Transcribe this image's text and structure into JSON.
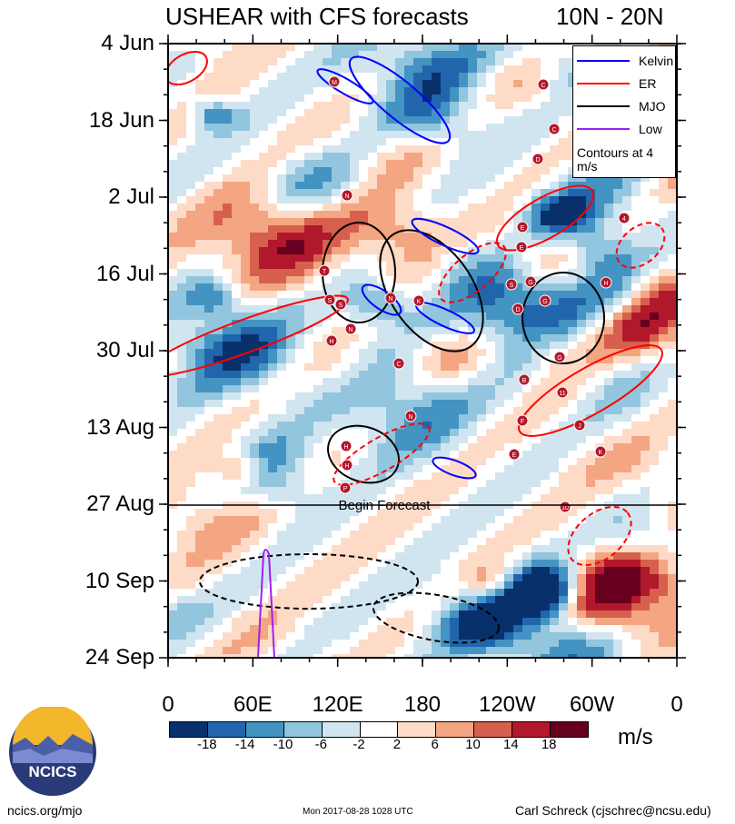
{
  "title": {
    "left": "USHEAR with CFS forecasts",
    "right": "10N - 20N"
  },
  "chart_data": {
    "type": "heatmap",
    "title": "USHEAR with CFS forecasts",
    "subtitle": "10N - 20N",
    "y_ticks": [
      "4 Jun",
      "18 Jun",
      "2 Jul",
      "16 Jul",
      "30 Jul",
      "13 Aug",
      "27 Aug",
      "10 Sep",
      "24 Sep"
    ],
    "x_ticks": [
      "0",
      "60E",
      "120E",
      "180",
      "120W",
      "60W",
      "0"
    ],
    "colorbar": {
      "ticks": [
        "-18",
        "-14",
        "-10",
        "-6",
        "-2",
        "2",
        "6",
        "10",
        "14",
        "18"
      ],
      "colors": [
        "#08306b",
        "#2166ac",
        "#4393c3",
        "#92c5de",
        "#d1e5f0",
        "#ffffff",
        "#fddbc7",
        "#f4a582",
        "#d6604d",
        "#b2182b",
        "#67001f"
      ],
      "unit": "m/s"
    },
    "legend": [
      {
        "name": "Kelvin",
        "color": "#0000ff"
      },
      {
        "name": "ER",
        "color": "#ff0000"
      },
      {
        "name": "MJO",
        "color": "#000000"
      },
      {
        "name": "Low",
        "color": "#a020f0"
      }
    ],
    "legend_note": "Contours at 4 m/s",
    "annotation": "Begin Forecast",
    "storm_labels": [
      "M",
      "C",
      "C",
      "D",
      "N",
      "4",
      "T",
      "S",
      "S",
      "N",
      "H",
      "N",
      "K",
      "E",
      "E",
      "G",
      "S",
      "G",
      "H",
      "D",
      "C",
      "N",
      "B",
      "11",
      "F",
      "J",
      "G",
      "E",
      "K",
      "H",
      "H",
      "P",
      "10"
    ]
  },
  "footer": {
    "left": "ncics.org/mjo",
    "middle": "Mon 2017-08-28 1028 UTC",
    "right": "Carl Schreck (cjschrec@ncsu.edu)"
  },
  "logo": {
    "text": "NCICS"
  }
}
